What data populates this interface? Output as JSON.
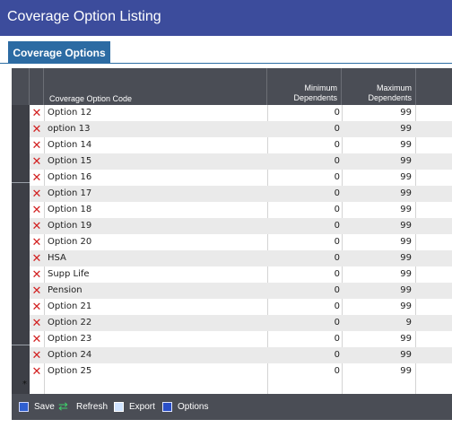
{
  "window": {
    "title": "Coverage Option Listing"
  },
  "tabs": [
    {
      "label": "Coverage Options"
    }
  ],
  "grid": {
    "columns": {
      "code": "Coverage Option Code",
      "min_line1": "Minimum",
      "min_line2": "Dependents",
      "max_line1": "Maximum",
      "max_line2": "Dependents"
    },
    "rows": [
      {
        "code": "Option 12",
        "min": "0",
        "max": "99"
      },
      {
        "code": "option 13",
        "min": "0",
        "max": "99"
      },
      {
        "code": "Option 14",
        "min": "0",
        "max": "99"
      },
      {
        "code": "Option 15",
        "min": "0",
        "max": "99"
      },
      {
        "code": "Option 16",
        "min": "0",
        "max": "99"
      },
      {
        "code": "Option 17",
        "min": "0",
        "max": "99"
      },
      {
        "code": "Option 18",
        "min": "0",
        "max": "99"
      },
      {
        "code": "Option 19",
        "min": "0",
        "max": "99"
      },
      {
        "code": "Option 20",
        "min": "0",
        "max": "99"
      },
      {
        "code": "HSA",
        "min": "0",
        "max": "99"
      },
      {
        "code": "Supp Life",
        "min": "0",
        "max": "99"
      },
      {
        "code": "Pension",
        "min": "0",
        "max": "99"
      },
      {
        "code": "Option 21",
        "min": "0",
        "max": "99"
      },
      {
        "code": "Option 22",
        "min": "0",
        "max": "9"
      },
      {
        "code": "Option 23",
        "min": "0",
        "max": "99"
      },
      {
        "code": "Option 24",
        "min": "0",
        "max": "99"
      },
      {
        "code": "Option 25",
        "min": "0",
        "max": "99"
      }
    ],
    "new_row_marker": "*"
  },
  "toolbar": {
    "save": "Save",
    "refresh": "Refresh",
    "export": "Export",
    "options": "Options"
  },
  "icons": {
    "delete": "delete-x-icon",
    "save": "save-disk-icon",
    "refresh": "refresh-arrows-icon",
    "export": "export-document-icon",
    "options": "options-icon"
  },
  "colors": {
    "title_bar": "#3c4c9c",
    "tab": "#2c6ba3",
    "grid_header": "#4a4d55",
    "delete_icon": "#d22020"
  }
}
